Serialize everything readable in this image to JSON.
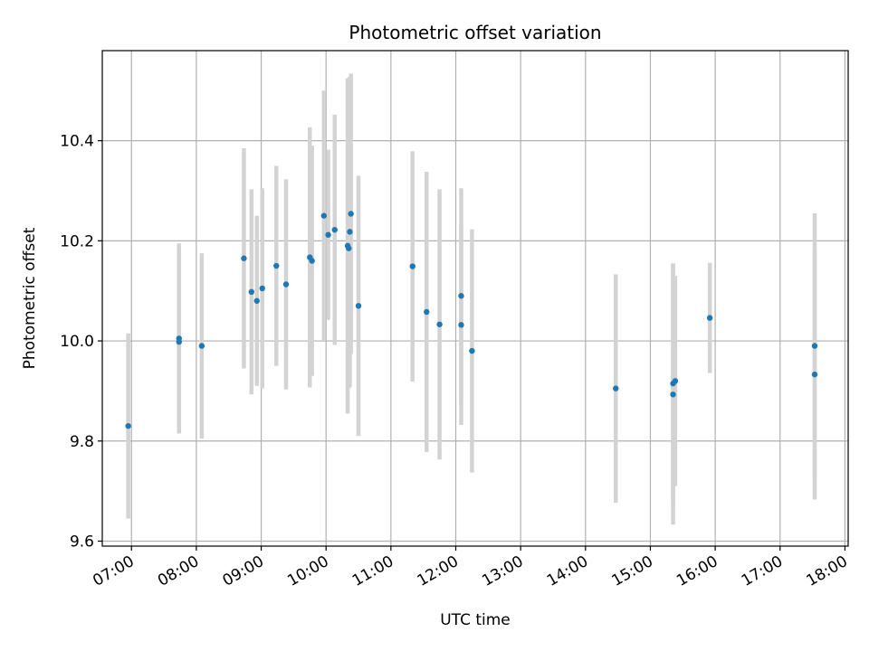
{
  "chart_data": {
    "type": "scatter",
    "title": "Photometric offset variation",
    "xlabel": "UTC time",
    "ylabel": "Photometric offset",
    "x_ticks": [
      "07:00",
      "08:00",
      "09:00",
      "10:00",
      "11:00",
      "12:00",
      "13:00",
      "14:00",
      "15:00",
      "16:00",
      "17:00",
      "18:00"
    ],
    "y_ticks": [
      "9.6",
      "9.8",
      "10.0",
      "10.2",
      "10.4"
    ],
    "xlim": [
      "06:33",
      "18:03"
    ],
    "ylim": [
      9.59,
      10.58
    ],
    "grid": true,
    "colors": {
      "point": "#1f77b4",
      "errorbar": "#d3d3d3",
      "grid": "#b0b0b0",
      "axis": "#000000"
    },
    "points": [
      {
        "x": "06:57",
        "y": 9.83,
        "err": 0.185
      },
      {
        "x": "07:44",
        "y": 10.005,
        "err": 0.19
      },
      {
        "x": "07:44",
        "y": 9.998,
        "err": 0.18
      },
      {
        "x": "08:05",
        "y": 9.99,
        "err": 0.185
      },
      {
        "x": "08:44",
        "y": 10.165,
        "err": 0.22
      },
      {
        "x": "08:51",
        "y": 10.098,
        "err": 0.205
      },
      {
        "x": "08:56",
        "y": 10.08,
        "err": 0.17
      },
      {
        "x": "09:01",
        "y": 10.105,
        "err": 0.2
      },
      {
        "x": "09:14",
        "y": 10.15,
        "err": 0.2
      },
      {
        "x": "09:23",
        "y": 10.113,
        "err": 0.21
      },
      {
        "x": "09:45",
        "y": 10.167,
        "err": 0.26
      },
      {
        "x": "09:47",
        "y": 10.16,
        "err": 0.23
      },
      {
        "x": "09:58",
        "y": 10.25,
        "err": 0.25
      },
      {
        "x": "10:02",
        "y": 10.212,
        "err": 0.17
      },
      {
        "x": "10:08",
        "y": 10.222,
        "err": 0.23
      },
      {
        "x": "10:20",
        "y": 10.19,
        "err": 0.335
      },
      {
        "x": "10:21",
        "y": 10.185,
        "err": 0.28
      },
      {
        "x": "10:22",
        "y": 10.218,
        "err": 0.31
      },
      {
        "x": "10:23",
        "y": 10.254,
        "err": 0.28
      },
      {
        "x": "10:30",
        "y": 10.07,
        "err": 0.26
      },
      {
        "x": "11:20",
        "y": 10.149,
        "err": 0.23
      },
      {
        "x": "11:33",
        "y": 10.058,
        "err": 0.28
      },
      {
        "x": "11:45",
        "y": 10.033,
        "err": 0.27
      },
      {
        "x": "12:05",
        "y": 10.09,
        "err": 0.215
      },
      {
        "x": "12:05",
        "y": 10.032,
        "err": 0.2
      },
      {
        "x": "12:15",
        "y": 9.98,
        "err": 0.243
      },
      {
        "x": "14:28",
        "y": 9.905,
        "err": 0.228
      },
      {
        "x": "15:21",
        "y": 9.893,
        "err": 0.26
      },
      {
        "x": "15:21",
        "y": 9.915,
        "err": 0.24
      },
      {
        "x": "15:23",
        "y": 9.92,
        "err": 0.21
      },
      {
        "x": "15:55",
        "y": 10.046,
        "err": 0.11
      },
      {
        "x": "17:32",
        "y": 9.99,
        "err": 0.265
      },
      {
        "x": "17:32",
        "y": 9.933,
        "err": 0.25
      }
    ]
  }
}
